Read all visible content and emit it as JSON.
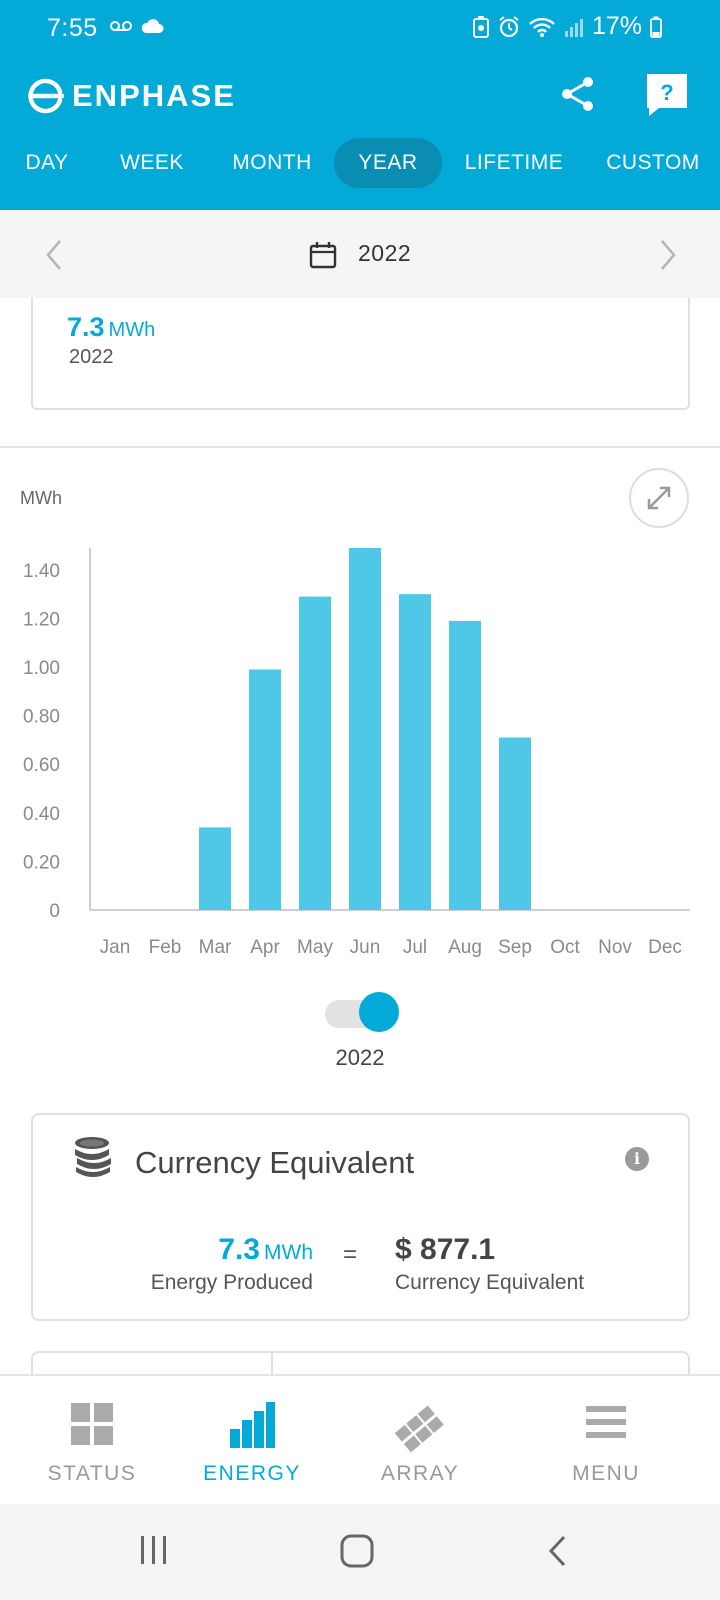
{
  "status_bar": {
    "time": "7:55",
    "battery": "17%"
  },
  "header": {
    "brand": "ENPHASE",
    "icons": {
      "share": "share-icon",
      "help": "help-icon"
    }
  },
  "tabs": [
    {
      "label": "DAY",
      "active": false
    },
    {
      "label": "WEEK",
      "active": false
    },
    {
      "label": "MONTH",
      "active": false
    },
    {
      "label": "YEAR",
      "active": true
    },
    {
      "label": "LIFETIME",
      "active": false
    },
    {
      "label": "CUSTOM",
      "active": false
    }
  ],
  "date_nav": {
    "label": "2022"
  },
  "summary": {
    "value": "7.3",
    "unit": "MWh",
    "period": "2022"
  },
  "chart": {
    "unit_label": "MWh"
  },
  "chart_data": {
    "type": "bar",
    "categories": [
      "Jan",
      "Feb",
      "Mar",
      "Apr",
      "May",
      "Jun",
      "Jul",
      "Aug",
      "Sep",
      "Oct",
      "Nov",
      "Dec"
    ],
    "values": [
      0,
      0,
      0.34,
      0.99,
      1.29,
      1.49,
      1.3,
      1.19,
      0.71,
      0,
      0,
      0
    ],
    "ylabel": "MWh",
    "ylim": [
      0,
      1.49
    ],
    "yticks": [
      "0",
      "0.20",
      "0.40",
      "0.60",
      "0.80",
      "1.00",
      "1.20",
      "1.40"
    ],
    "ytick_values": [
      0,
      0.2,
      0.4,
      0.6,
      0.8,
      1.0,
      1.2,
      1.4
    ],
    "bar_color": "#4ec8e6",
    "grid": false
  },
  "toggle": {
    "label": "2022",
    "on": true
  },
  "currency": {
    "title": "Currency Equivalent",
    "energy_value": "7.3",
    "energy_unit": "MWh",
    "energy_label": "Energy Produced",
    "equals": "=",
    "money_value": "$ 877.1",
    "money_label": "Currency Equivalent"
  },
  "bottom_nav": [
    {
      "label": "STATUS",
      "icon": "grid-icon",
      "active": false
    },
    {
      "label": "ENERGY",
      "icon": "bar-chart-icon",
      "active": true
    },
    {
      "label": "ARRAY",
      "icon": "solar-panels-icon",
      "active": false
    },
    {
      "label": "MENU",
      "icon": "hamburger-icon",
      "active": false
    }
  ],
  "colors": {
    "brand": "#03aad8",
    "active_tab": "#0a8db3",
    "bar": "#4ec8e6"
  }
}
